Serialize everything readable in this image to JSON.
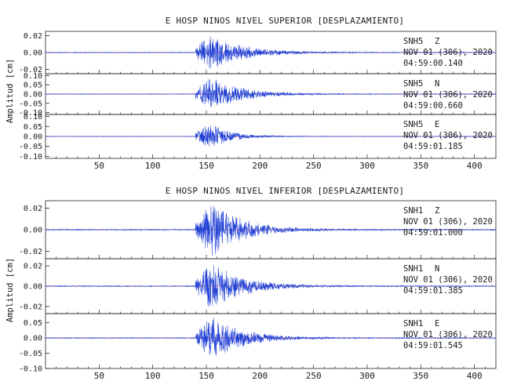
{
  "chart_data": [
    {
      "type": "line",
      "title": "E HOSP NINOS NIVEL SUPERIOR [DESPLAZAMIENTO]",
      "ylabel": "Amplitud [cm]",
      "xlabel": "",
      "xlim": [
        0,
        420
      ],
      "xticks": [
        "50",
        "100",
        "150",
        "200",
        "250",
        "300",
        "350",
        "400"
      ],
      "line_color": "#1f3fd6",
      "baseline_color": "#d62828",
      "grid": false,
      "onset_s": 140,
      "traces": [
        {
          "station": "SNH5",
          "component": "Z",
          "date": "NOV 01 (306), 2020",
          "time": "04:59:00.140",
          "ylim": [
            -0.025,
            0.025
          ],
          "yticks": [
            "0.02",
            "0.00",
            "-0.02"
          ],
          "peak_amplitude": 0.023
        },
        {
          "station": "SNH5",
          "component": "N",
          "date": "NOV 01 (306), 2020",
          "time": "04:59:00.660",
          "ylim": [
            -0.11,
            0.11
          ],
          "yticks": [
            "0.10",
            "0.05",
            "0.00",
            "-0.05",
            "-0.10"
          ],
          "peak_amplitude": 0.09
        },
        {
          "station": "SNH5",
          "component": "E",
          "date": "NOV 01 (306), 2020",
          "time": "04:59:01.185",
          "ylim": [
            -0.11,
            0.11
          ],
          "yticks": [
            "0.10",
            "0.05",
            "0.00",
            "-0.05",
            "-0.10"
          ],
          "peak_amplitude": 0.07
        }
      ]
    },
    {
      "type": "line",
      "title": "E HOSP NINOS NIVEL INFERIOR [DESPLAZAMIENTO]",
      "ylabel": "Amplitud [cm]",
      "xlabel": "",
      "xlim": [
        0,
        420
      ],
      "xticks": [
        "50",
        "100",
        "150",
        "200",
        "250",
        "300",
        "350",
        "400"
      ],
      "line_color": "#1f3fd6",
      "baseline_color": "#d62828",
      "grid": false,
      "onset_s": 140,
      "traces": [
        {
          "station": "SNH1",
          "component": "Z",
          "date": "NOV 01 (306), 2020",
          "time": "04:59:01.000",
          "ylim": [
            -0.027,
            0.027
          ],
          "yticks": [
            "0.02",
            "0.00",
            "-0.02"
          ],
          "peak_amplitude": 0.026
        },
        {
          "station": "SNH1",
          "component": "N",
          "date": "NOV 01 (306), 2020",
          "time": "04:59:01.385",
          "ylim": [
            -0.027,
            0.027
          ],
          "yticks": [
            "0.02",
            "0.00",
            "-0.02"
          ],
          "peak_amplitude": 0.024
        },
        {
          "station": "SNH1",
          "component": "E",
          "date": "NOV 01 (306), 2020",
          "time": "04:59:01.545",
          "ylim": [
            -0.1,
            0.08
          ],
          "yticks": [
            "0.05",
            "0.00",
            "-0.05",
            "-0.10"
          ],
          "peak_amplitude": 0.075
        }
      ]
    }
  ]
}
